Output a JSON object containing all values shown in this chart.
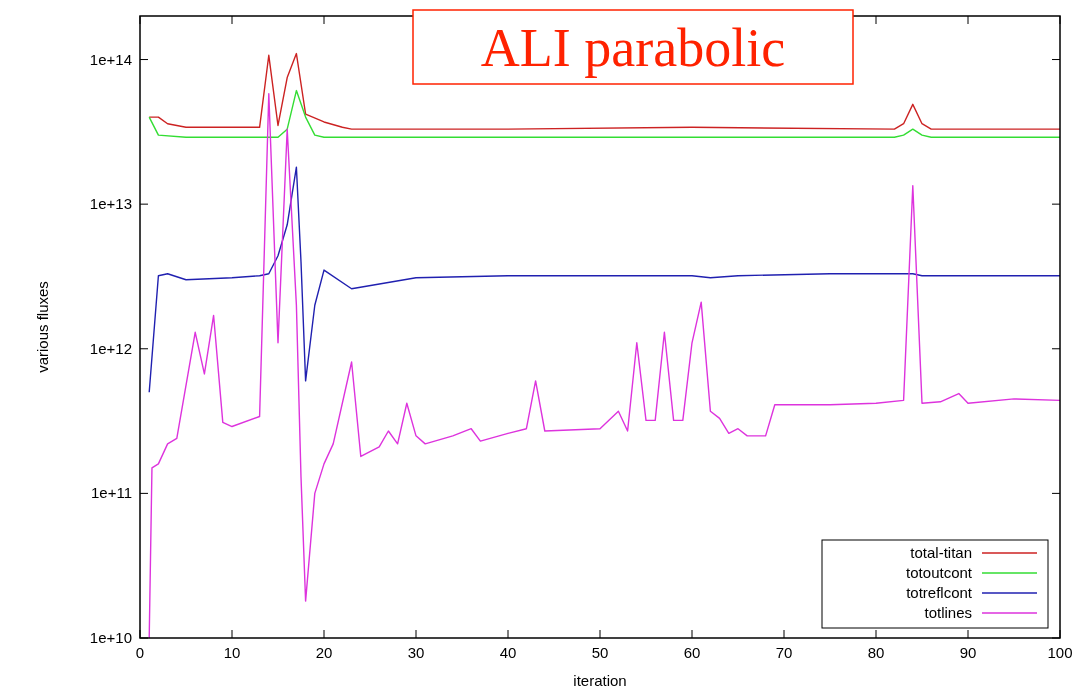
{
  "chart_data": {
    "type": "line",
    "xlabel": "iteration",
    "ylabel": "various fluxes",
    "annotations": [
      "ALI parabolic"
    ],
    "log": "y",
    "xlim": [
      0,
      100
    ],
    "xticks": [
      0,
      10,
      20,
      30,
      40,
      50,
      60,
      70,
      80,
      90,
      100
    ],
    "ylim": [
      10000000000.0,
      200000000000000.0
    ],
    "yticks": [
      {
        "value": 10000000000.0,
        "label": "1e+10"
      },
      {
        "value": 100000000000.0,
        "label": "1e+11"
      },
      {
        "value": 1000000000000.0,
        "label": "1e+12"
      },
      {
        "value": 10000000000000.0,
        "label": "1e+13"
      },
      {
        "value": 100000000000000.0,
        "label": "1e+14"
      }
    ],
    "legend": "bottom right",
    "grid": false,
    "series": [
      {
        "name": "total-titan",
        "color": "#cc2222",
        "x": [
          1,
          2,
          3,
          5,
          8,
          10,
          13,
          14,
          15,
          16,
          17,
          18,
          20,
          22,
          23,
          40,
          60,
          82,
          83,
          84,
          85,
          86,
          100
        ],
        "values": [
          40000000000000.0,
          40000000000000.0,
          36000000000000.0,
          34000000000000.0,
          34000000000000.0,
          34000000000000.0,
          34000000000000.0,
          107000000000000.0,
          35000000000000.0,
          75000000000000.0,
          110000000000000.0,
          42000000000000.0,
          37000000000000.0,
          34000000000000.0,
          33000000000000.0,
          33000000000000.0,
          34000000000000.0,
          33000000000000.0,
          36000000000000.0,
          49000000000000.0,
          36000000000000.0,
          33000000000000.0,
          33000000000000.0
        ]
      },
      {
        "name": "totoutcont",
        "color": "#33dd33",
        "x": [
          1,
          2,
          5,
          10,
          15,
          16,
          17,
          18,
          19,
          20,
          40,
          82,
          83,
          84,
          85,
          86,
          100
        ],
        "values": [
          40000000000000.0,
          30000000000000.0,
          29000000000000.0,
          29000000000000.0,
          29000000000000.0,
          33000000000000.0,
          61000000000000.0,
          40000000000000.0,
          30000000000000.0,
          29000000000000.0,
          29000000000000.0,
          29000000000000.0,
          30000000000000.0,
          33000000000000.0,
          30000000000000.0,
          29000000000000.0,
          29000000000000.0
        ]
      },
      {
        "name": "totreflcont",
        "color": "#2020b0",
        "x": [
          1,
          2,
          3,
          5,
          10,
          13,
          14,
          15,
          16,
          17,
          17.5,
          18,
          19,
          20,
          23,
          30,
          40,
          60,
          62,
          65,
          75,
          84,
          85,
          100
        ],
        "values": [
          500000000000.0,
          3200000000000.0,
          3300000000000.0,
          3000000000000.0,
          3100000000000.0,
          3200000000000.0,
          3300000000000.0,
          4400000000000.0,
          7200000000000.0,
          18000000000000.0,
          4000000000000.0,
          600000000000.0,
          2000000000000.0,
          3500000000000.0,
          2600000000000.0,
          3100000000000.0,
          3200000000000.0,
          3200000000000.0,
          3100000000000.0,
          3200000000000.0,
          3300000000000.0,
          3300000000000.0,
          3200000000000.0,
          3200000000000.0
        ]
      },
      {
        "name": "totlines",
        "color": "#dd33dd",
        "x": [
          1,
          1.3,
          2,
          3,
          4,
          6,
          7,
          8,
          9,
          10,
          13,
          14,
          15,
          16,
          17,
          17.5,
          18,
          19,
          20,
          21,
          23,
          24,
          26,
          27,
          28,
          29,
          30,
          31,
          34,
          36,
          37,
          40,
          42,
          43,
          44,
          50,
          52,
          53,
          54,
          55,
          56,
          57,
          58,
          59,
          60,
          61,
          62,
          63,
          64,
          65,
          66,
          68,
          69,
          75,
          80,
          83,
          84,
          85,
          87,
          89,
          90,
          95,
          100
        ],
        "values": [
          10000000000.0,
          150000000000.0,
          160000000000.0,
          220000000000.0,
          240000000000.0,
          1300000000000.0,
          670000000000.0,
          1700000000000.0,
          310000000000.0,
          290000000000.0,
          340000000000.0,
          58000000000000.0,
          1100000000000.0,
          33000000000000.0,
          2000000000000.0,
          130000000000.0,
          18000000000.0,
          100000000000.0,
          160000000000.0,
          220000000000.0,
          810000000000.0,
          180000000000.0,
          210000000000.0,
          270000000000.0,
          220000000000.0,
          420000000000.0,
          250000000000.0,
          220000000000.0,
          250000000000.0,
          280000000000.0,
          230000000000.0,
          260000000000.0,
          280000000000.0,
          600000000000.0,
          270000000000.0,
          280000000000.0,
          370000000000.0,
          270000000000.0,
          1100000000000.0,
          320000000000.0,
          320000000000.0,
          1300000000000.0,
          320000000000.0,
          320000000000.0,
          1100000000000.0,
          2100000000000.0,
          370000000000.0,
          330000000000.0,
          260000000000.0,
          280000000000.0,
          250000000000.0,
          250000000000.0,
          410000000000.0,
          410000000000.0,
          420000000000.0,
          440000000000.0,
          13400000000000.0,
          420000000000.0,
          430000000000.0,
          490000000000.0,
          420000000000.0,
          450000000000.0,
          440000000000.0
        ]
      }
    ]
  }
}
